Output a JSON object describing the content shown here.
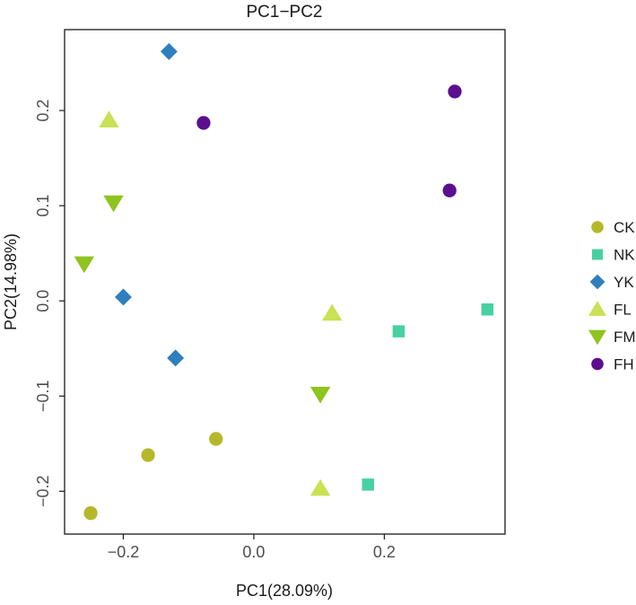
{
  "chart_data": {
    "type": "scatter",
    "title": "PC1−PC2",
    "xlabel": "PC1(28.09%)",
    "ylabel": "PC2(14.98%)",
    "xlim": [
      -0.29,
      0.385
    ],
    "ylim": [
      -0.245,
      0.285
    ],
    "xticks": [
      -0.2,
      0.0,
      0.2
    ],
    "xtick_labels": [
      "−0.2",
      "0.0",
      "0.2"
    ],
    "yticks": [
      -0.2,
      -0.1,
      0.0,
      0.1,
      0.2
    ],
    "ytick_labels": [
      "−0.2",
      "−0.1",
      "0.0",
      "0.1",
      "0.2"
    ],
    "grid": false,
    "legend_position": "right",
    "series": [
      {
        "name": "CK",
        "marker": "circle",
        "color": "#b5b82a",
        "points": [
          [
            -0.25,
            -0.223
          ],
          [
            -0.162,
            -0.162
          ],
          [
            -0.058,
            -0.145
          ]
        ]
      },
      {
        "name": "NK",
        "marker": "square",
        "color": "#48d1a0",
        "points": [
          [
            0.175,
            -0.193
          ],
          [
            0.222,
            -0.032
          ],
          [
            0.358,
            -0.009
          ]
        ]
      },
      {
        "name": "YK",
        "marker": "diamond",
        "color": "#2f7ebd",
        "points": [
          [
            -0.13,
            0.262
          ],
          [
            -0.2,
            0.004
          ],
          [
            -0.12,
            -0.06
          ]
        ]
      },
      {
        "name": "FL",
        "marker": "triangle-up",
        "color": "#c8e253",
        "points": [
          [
            -0.222,
            0.19
          ],
          [
            0.12,
            -0.013
          ],
          [
            0.102,
            -0.197
          ]
        ]
      },
      {
        "name": "FM",
        "marker": "triangle-down",
        "color": "#8fc31f",
        "points": [
          [
            -0.215,
            0.103
          ],
          [
            -0.26,
            0.039
          ],
          [
            0.102,
            -0.098
          ]
        ]
      },
      {
        "name": "FH",
        "marker": "circle",
        "color": "#5b0f8f",
        "points": [
          [
            -0.077,
            0.187
          ],
          [
            0.308,
            0.22
          ],
          [
            0.3,
            0.116
          ]
        ]
      }
    ]
  }
}
